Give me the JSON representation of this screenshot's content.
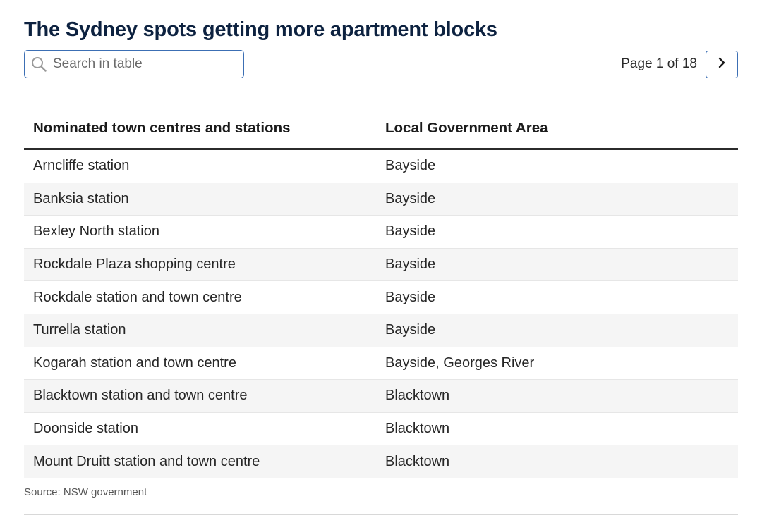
{
  "title": "The Sydney spots getting more apartment blocks",
  "search": {
    "placeholder": "Search in table",
    "value": "",
    "icon": "search-icon"
  },
  "pagination": {
    "label": "Page 1 of 18",
    "next_icon": "chevron-right-icon"
  },
  "table": {
    "columns": [
      "Nominated town centres and stations",
      "Local Government Area"
    ],
    "rows": [
      [
        "Arncliffe station",
        "Bayside"
      ],
      [
        "Banksia station",
        "Bayside"
      ],
      [
        "Bexley North station",
        "Bayside"
      ],
      [
        "Rockdale Plaza shopping centre",
        "Bayside"
      ],
      [
        "Rockdale station and town centre",
        "Bayside"
      ],
      [
        "Turrella station",
        "Bayside"
      ],
      [
        "Kogarah station and town centre",
        "Bayside, Georges River"
      ],
      [
        "Blacktown station and town centre",
        "Blacktown"
      ],
      [
        "Doonside station",
        "Blacktown"
      ],
      [
        "Mount Druitt station and town centre",
        "Blacktown"
      ]
    ]
  },
  "source": "Source: NSW government",
  "colors": {
    "title": "#0d2240",
    "accent": "#3c6fb4"
  }
}
